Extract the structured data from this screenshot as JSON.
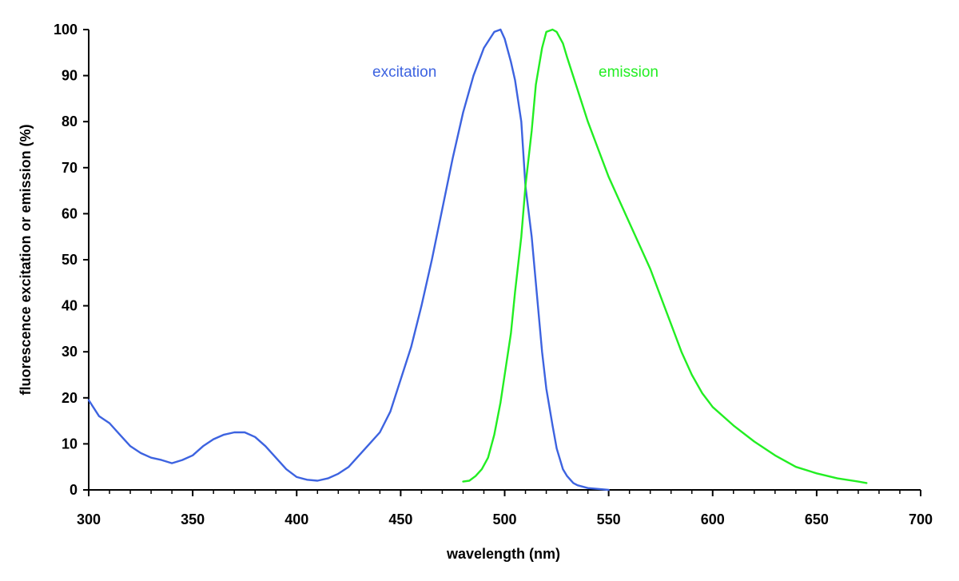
{
  "chart_data": {
    "type": "line",
    "xlabel": "wavelength (nm)",
    "ylabel": "fluorescence excitation or emission (%)",
    "xlim": [
      300,
      700
    ],
    "ylim": [
      0,
      100
    ],
    "x_ticks": [
      "300",
      "350",
      "400",
      "450",
      "500",
      "550",
      "600",
      "650",
      "700"
    ],
    "y_ticks": [
      "0",
      "10",
      "20",
      "30",
      "40",
      "50",
      "60",
      "70",
      "80",
      "90",
      "100"
    ],
    "x_minor_step": 10,
    "grid": false,
    "legend": "none",
    "series": [
      {
        "name": "excitation",
        "color": "#3d63e0",
        "x": [
          300,
          305,
          310,
          315,
          320,
          325,
          330,
          335,
          340,
          345,
          350,
          355,
          360,
          365,
          370,
          375,
          380,
          385,
          390,
          395,
          400,
          405,
          410,
          415,
          420,
          425,
          430,
          435,
          440,
          445,
          450,
          455,
          460,
          465,
          470,
          475,
          480,
          485,
          490,
          495,
          498,
          500,
          503,
          505,
          508,
          510,
          513,
          515,
          518,
          520,
          523,
          525,
          528,
          530,
          533,
          535,
          540,
          545,
          550
        ],
        "y": [
          19.5,
          16,
          14.5,
          12,
          9.5,
          8,
          7,
          6.5,
          5.8,
          6.5,
          7.5,
          9.5,
          11,
          12,
          12.5,
          12.5,
          11.5,
          9.5,
          7,
          4.5,
          2.8,
          2.2,
          2.0,
          2.5,
          3.5,
          5,
          7.5,
          10,
          12.5,
          17,
          24,
          31,
          40,
          50,
          61,
          72,
          82,
          90,
          96,
          99.5,
          100,
          98,
          93,
          89,
          80,
          66,
          55,
          45,
          30,
          22,
          14,
          9,
          4.5,
          3,
          1.5,
          1,
          0.4,
          0.2,
          0
        ]
      },
      {
        "name": "emission",
        "color": "#22ee22",
        "x": [
          480,
          483,
          486,
          489,
          492,
          495,
          498,
          500,
          503,
          505,
          508,
          510,
          513,
          515,
          518,
          520,
          523,
          525,
          528,
          530,
          535,
          540,
          545,
          550,
          555,
          560,
          565,
          570,
          575,
          580,
          585,
          590,
          595,
          600,
          610,
          620,
          630,
          640,
          650,
          660,
          670,
          674
        ],
        "y": [
          1.8,
          2,
          3,
          4.5,
          7,
          12,
          19,
          25,
          34,
          43,
          55,
          66,
          78,
          88,
          96,
          99.5,
          100,
          99.5,
          97,
          94,
          87,
          80,
          74,
          68,
          63,
          58,
          53,
          48,
          42,
          36,
          30,
          25,
          21,
          18,
          14,
          10.5,
          7.5,
          5,
          3.6,
          2.5,
          1.8,
          1.5
        ]
      }
    ]
  }
}
